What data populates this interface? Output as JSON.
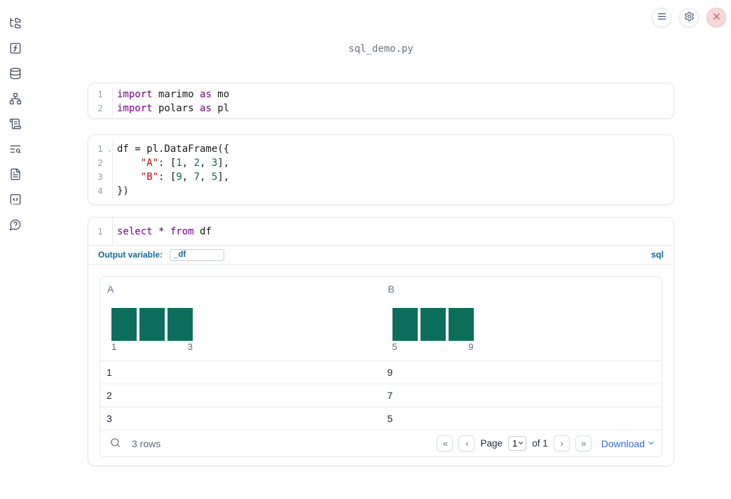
{
  "header": {
    "filename": "sql_demo.py"
  },
  "topbar": {
    "buttons": [
      {
        "icon": "menu-icon"
      },
      {
        "icon": "settings-gear-icon"
      },
      {
        "icon": "shutdown-close-icon"
      }
    ]
  },
  "sidebar": {
    "items": [
      {
        "icon": "file-tree-icon"
      },
      {
        "icon": "function-square-icon"
      },
      {
        "icon": "database-icon"
      },
      {
        "icon": "dependency-graph-icon"
      },
      {
        "icon": "scroll-logs-icon"
      },
      {
        "icon": "list-search-icon"
      },
      {
        "icon": "file-text-icon"
      },
      {
        "icon": "code-square-icon"
      },
      {
        "icon": "help-bubble-icon"
      }
    ]
  },
  "cells": [
    {
      "lines": [
        {
          "num": "1",
          "tokens": [
            {
              "c": "kw",
              "t": "import"
            },
            {
              "t": " marimo "
            },
            {
              "c": "kw",
              "t": "as"
            },
            {
              "t": " mo"
            }
          ]
        },
        {
          "num": "2",
          "tokens": [
            {
              "c": "kw",
              "t": "import"
            },
            {
              "t": " polars "
            },
            {
              "c": "kw",
              "t": "as"
            },
            {
              "t": " pl"
            }
          ]
        }
      ]
    },
    {
      "lines": [
        {
          "num": "1",
          "fold": "⌄",
          "tokens": [
            {
              "t": "df = pl.DataFrame({"
            }
          ]
        },
        {
          "num": "2",
          "tokens": [
            {
              "t": "    "
            },
            {
              "c": "str",
              "t": "\"A\""
            },
            {
              "t": ": ["
            },
            {
              "c": "num",
              "t": "1"
            },
            {
              "t": ", "
            },
            {
              "c": "num",
              "t": "2"
            },
            {
              "t": ", "
            },
            {
              "c": "num",
              "t": "3"
            },
            {
              "t": "],"
            }
          ]
        },
        {
          "num": "3",
          "tokens": [
            {
              "t": "    "
            },
            {
              "c": "str",
              "t": "\"B\""
            },
            {
              "t": ": ["
            },
            {
              "c": "num",
              "t": "9"
            },
            {
              "t": ", "
            },
            {
              "c": "num",
              "t": "7"
            },
            {
              "t": ", "
            },
            {
              "c": "num",
              "t": "5"
            },
            {
              "t": "],"
            }
          ]
        },
        {
          "num": "4",
          "tokens": [
            {
              "t": "})"
            }
          ]
        }
      ]
    },
    {
      "lines": [
        {
          "num": "1",
          "tokens": [
            {
              "c": "kw",
              "t": "select"
            },
            {
              "t": " * "
            },
            {
              "c": "kw",
              "t": "from"
            },
            {
              "t": " df"
            }
          ]
        }
      ],
      "output_variable_label": "Output variable:",
      "output_variable_value": "_df",
      "language_badge": "sql"
    }
  ],
  "table": {
    "columns": [
      {
        "name": "A",
        "hist": {
          "bars": 3,
          "min_label": "1",
          "max_label": "3"
        }
      },
      {
        "name": "B",
        "hist": {
          "bars": 3,
          "min_label": "5",
          "max_label": "9"
        }
      }
    ],
    "rows": [
      [
        "1",
        "9"
      ],
      [
        "2",
        "7"
      ],
      [
        "3",
        "5"
      ]
    ],
    "footer": {
      "row_count": "3 rows",
      "page_label": "Page",
      "page_value": "1",
      "of_label": "of 1",
      "download_label": "Download",
      "pagination": {
        "first": "«",
        "prev": "‹",
        "next": "›",
        "last": "»"
      }
    }
  },
  "colors": {
    "histogram_teal": "#0e6e5c",
    "accent_blue": "#14689d",
    "link_blue": "#2e6bd3",
    "danger_red": "#c25d62"
  }
}
